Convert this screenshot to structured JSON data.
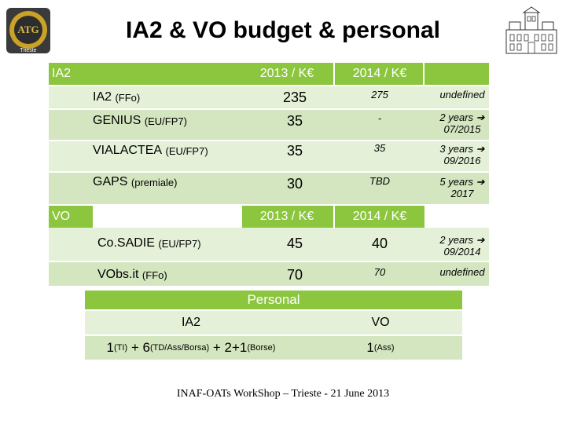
{
  "title": "IA2 & VO budget & personal",
  "logo_left_text": "Trieste",
  "ia2_section": {
    "label": "IA2",
    "col_2013": "2013 / K€",
    "col_2014": "2014 / K€",
    "rows": [
      {
        "name": "IA2",
        "tag": "(FFo)",
        "v2013": "235",
        "v2014": "275",
        "dur1": "undefined",
        "dur2": ""
      },
      {
        "name": "GENIUS",
        "tag": "(EU/FP7)",
        "v2013": "35",
        "v2014": "-",
        "dur1": "2 years ➔",
        "dur2": "07/2015"
      },
      {
        "name": "VIALACTEA",
        "tag": "(EU/FP7)",
        "v2013": "35",
        "v2014": "35",
        "dur1": "3 years ➔",
        "dur2": "09/2016"
      },
      {
        "name": "GAPS",
        "tag": "(premiale)",
        "v2013": "30",
        "v2014": "TBD",
        "dur1": "5 years ➔",
        "dur2": "2017"
      }
    ]
  },
  "vo_section": {
    "label": "VO",
    "col_2013": "2013 / K€",
    "col_2014": "2014 / K€",
    "rows": [
      {
        "name": "Co.SADIE",
        "tag": "(EU/FP7)",
        "v2013": "45",
        "v2014": "40",
        "dur1": "2 years ➔",
        "dur2": "09/2014"
      },
      {
        "name": "VObs.it",
        "tag": "(FFo)",
        "v2013": "70",
        "v2014": "70",
        "dur1": "undefined",
        "dur2": ""
      }
    ]
  },
  "personal": {
    "header": "Personal",
    "ia2_label": "IA2",
    "vo_label": "VO",
    "ia2_n1": "1",
    "ia2_t1": "(TI)",
    "ia2_plus1": " + ",
    "ia2_n2": "6",
    "ia2_t2": "(TD/Ass/Borsa)",
    "ia2_plus2": " + ",
    "ia2_n3": "2+1",
    "ia2_t3": "(Borse)",
    "vo_n1": "1",
    "vo_t1": "(Ass)"
  },
  "footer": "INAF-OATs WorkShop – Trieste - 21 June 2013"
}
